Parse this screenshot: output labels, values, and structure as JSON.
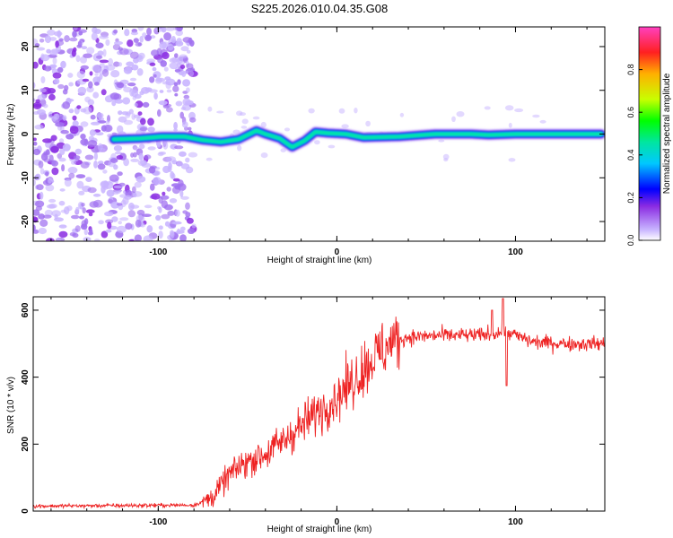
{
  "title": "S225.2026.010.04.35.G08",
  "chart_data": [
    {
      "type": "heatmap",
      "name": "spectrogram",
      "xlabel": "Height of straight line (km)",
      "ylabel": "Frequency (Hz)",
      "xlim": [
        -170,
        150
      ],
      "ylim": [
        -24.5,
        24.5
      ],
      "xticks": [
        -100,
        0,
        100
      ],
      "yticks": [
        -20,
        -10,
        0,
        10,
        20
      ],
      "colorbar": {
        "label": "Normalized spectral amplitude",
        "ticks": [
          0.0,
          0.2,
          0.4,
          0.6,
          0.8
        ],
        "range": [
          0,
          1
        ]
      },
      "signal_track": [
        {
          "x": -125,
          "f": -1.2
        },
        {
          "x": -110,
          "f": -1.0
        },
        {
          "x": -98,
          "f": -0.6
        },
        {
          "x": -85,
          "f": -0.6
        },
        {
          "x": -75,
          "f": -1.4
        },
        {
          "x": -65,
          "f": -1.8
        },
        {
          "x": -55,
          "f": -1.2
        },
        {
          "x": -45,
          "f": 0.8
        },
        {
          "x": -40,
          "f": 0.0
        },
        {
          "x": -32,
          "f": -1.0
        },
        {
          "x": -25,
          "f": -3.0
        },
        {
          "x": -18,
          "f": -1.5
        },
        {
          "x": -12,
          "f": 0.5
        },
        {
          "x": -5,
          "f": 0.2
        },
        {
          "x": 5,
          "f": 0.0
        },
        {
          "x": 15,
          "f": -0.8
        },
        {
          "x": 35,
          "f": -0.6
        },
        {
          "x": 55,
          "f": 0.0
        },
        {
          "x": 75,
          "f": 0.0
        },
        {
          "x": 85,
          "f": -0.2
        },
        {
          "x": 100,
          "f": 0.0
        },
        {
          "x": 125,
          "f": 0.0
        },
        {
          "x": 148,
          "f": 0.0
        }
      ],
      "noise_region_x": [
        -170,
        -80
      ]
    },
    {
      "type": "line",
      "name": "snr",
      "xlabel": "Height of straight line (km)",
      "ylabel": "SNR (10 * v/v)",
      "xlim": [
        -170,
        150
      ],
      "ylim": [
        0,
        640
      ],
      "xticks": [
        -100,
        0,
        100
      ],
      "yticks": [
        0,
        200,
        400,
        600
      ],
      "series_color": "#ee2222",
      "trend": [
        {
          "x": -170,
          "y": 15
        },
        {
          "x": -80,
          "y": 18
        },
        {
          "x": -70,
          "y": 40
        },
        {
          "x": -60,
          "y": 110
        },
        {
          "x": -50,
          "y": 150
        },
        {
          "x": -40,
          "y": 170
        },
        {
          "x": -30,
          "y": 210
        },
        {
          "x": -20,
          "y": 255
        },
        {
          "x": -10,
          "y": 300
        },
        {
          "x": 0,
          "y": 340
        },
        {
          "x": 10,
          "y": 395
        },
        {
          "x": 20,
          "y": 455
        },
        {
          "x": 30,
          "y": 500
        },
        {
          "x": 40,
          "y": 520
        },
        {
          "x": 60,
          "y": 525
        },
        {
          "x": 80,
          "y": 525
        },
        {
          "x": 95,
          "y": 535
        },
        {
          "x": 110,
          "y": 505
        },
        {
          "x": 130,
          "y": 500
        },
        {
          "x": 150,
          "y": 500
        }
      ],
      "peaks": [
        {
          "x": 93,
          "y": 635
        },
        {
          "x": 87,
          "y": 600
        },
        {
          "x": 95,
          "y": 375
        }
      ]
    }
  ],
  "colors": {
    "colormap": [
      "#c8b4ff",
      "#8a2be2",
      "#0000ff",
      "#00c8ff",
      "#00e6a0",
      "#00ff00",
      "#c8ff00",
      "#ffb000",
      "#ff2020",
      "#ff40c0"
    ]
  }
}
